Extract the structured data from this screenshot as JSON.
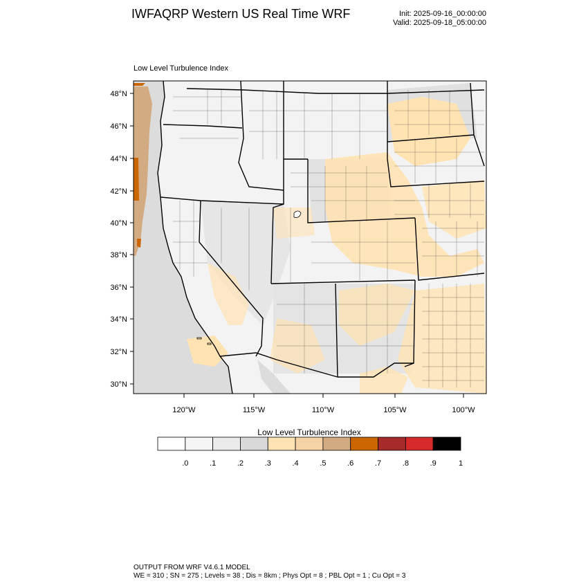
{
  "header": {
    "title": "IWFAQRP Western US Real Time WRF",
    "init": "Init: 2025-09-16_00:00:00",
    "valid": "Valid: 2025-09-18_05:00:00"
  },
  "panel": {
    "title": "Low Level Turbulence Index"
  },
  "axes": {
    "lat_ticks": [
      "48°N",
      "46°N",
      "44°N",
      "42°N",
      "40°N",
      "38°N",
      "36°N",
      "34°N",
      "32°N",
      "30°N"
    ],
    "lon_ticks": [
      "120°W",
      "115°W",
      "110°W",
      "105°W",
      "100°W"
    ]
  },
  "colorbar": {
    "title": "Low Level Turbulence Index",
    "labels": [
      ".0",
      ".1",
      ".2",
      ".3",
      ".4",
      ".5",
      ".6",
      ".7",
      ".8",
      ".9",
      "1"
    ],
    "colors": [
      "#ffffff",
      "#f5f5f5",
      "#ebebeb",
      "#d9d9d9",
      "#ffe3b3",
      "#f5d3a6",
      "#d2ab82",
      "#cc6600",
      "#a52a2a",
      "#d42a2a",
      "#000000"
    ]
  },
  "footer": {
    "line1": "OUTPUT FROM WRF V4.6.1 MODEL",
    "line2": "WE = 310 ; SN = 275 ; Levels = 38 ; Dis = 8km ; Phys Opt = 8 ; PBL Opt = 1 ; Cu Opt = 3"
  },
  "map": {
    "ocean_color": "#dedede",
    "land_color": "#f4f4f4"
  }
}
